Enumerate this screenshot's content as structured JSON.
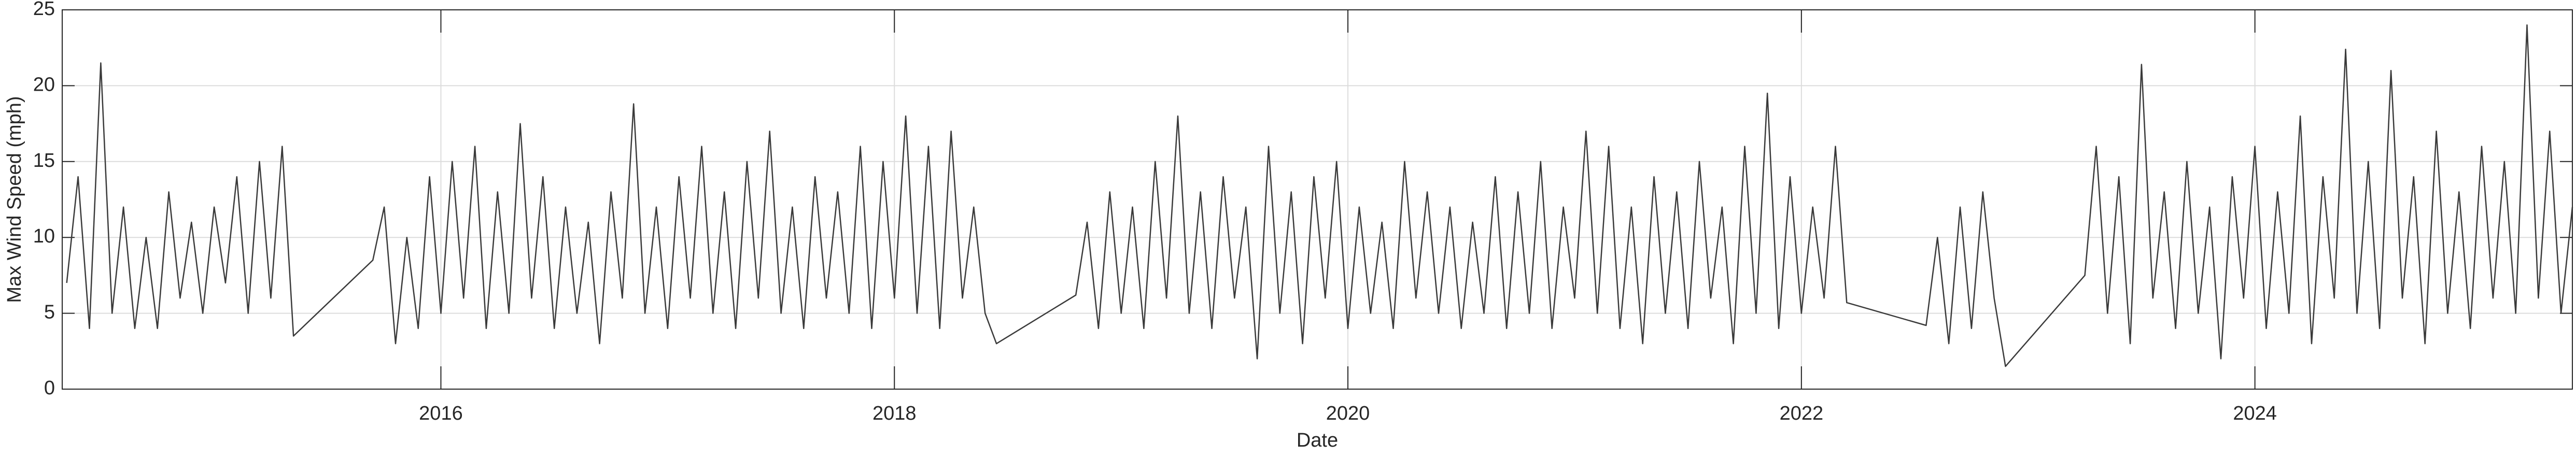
{
  "chart_data": {
    "type": "line",
    "xlabel": "Date",
    "ylabel": "Max Wind Speed (mph)",
    "xlim": [
      2014.33,
      2025.4
    ],
    "xticks": [
      2016,
      2018,
      2020,
      2022,
      2024
    ],
    "ylim": [
      0,
      25
    ],
    "yticks": [
      0,
      5,
      10,
      15,
      20,
      25
    ],
    "grid": true,
    "color": "#3a3a3a",
    "x": [
      2014.35,
      2014.4,
      2014.45,
      2014.5,
      2014.55,
      2014.6,
      2014.65,
      2014.7,
      2014.75,
      2014.8,
      2014.85,
      2014.9,
      2014.95,
      2015,
      2015.05,
      2015.1,
      2015.15,
      2015.2,
      2015.25,
      2015.3,
      2015.35,
      2015.7,
      2015.75,
      2015.8,
      2015.85,
      2015.9,
      2015.95,
      2016,
      2016.05,
      2016.1,
      2016.15,
      2016.2,
      2016.25,
      2016.3,
      2016.35,
      2016.4,
      2016.45,
      2016.5,
      2016.55,
      2016.6,
      2016.65,
      2016.7,
      2016.75,
      2016.8,
      2016.85,
      2016.9,
      2016.95,
      2017,
      2017.05,
      2017.1,
      2017.15,
      2017.2,
      2017.25,
      2017.3,
      2017.35,
      2017.4,
      2017.45,
      2017.5,
      2017.55,
      2017.6,
      2017.65,
      2017.7,
      2017.75,
      2017.8,
      2017.85,
      2017.9,
      2017.95,
      2018,
      2018.05,
      2018.1,
      2018.15,
      2018.2,
      2018.25,
      2018.3,
      2018.35,
      2018.4,
      2018.45,
      2018.8,
      2018.85,
      2018.9,
      2018.95,
      2019,
      2019.05,
      2019.1,
      2019.15,
      2019.2,
      2019.25,
      2019.3,
      2019.35,
      2019.4,
      2019.45,
      2019.5,
      2019.55,
      2019.6,
      2019.65,
      2019.7,
      2019.75,
      2019.8,
      2019.85,
      2019.9,
      2019.95,
      2020,
      2020.05,
      2020.1,
      2020.15,
      2020.2,
      2020.25,
      2020.3,
      2020.35,
      2020.4,
      2020.45,
      2020.5,
      2020.55,
      2020.6,
      2020.65,
      2020.7,
      2020.75,
      2020.8,
      2020.85,
      2020.9,
      2020.95,
      2021,
      2021.05,
      2021.1,
      2021.15,
      2021.2,
      2021.25,
      2021.3,
      2021.35,
      2021.4,
      2021.45,
      2021.5,
      2021.55,
      2021.6,
      2021.65,
      2021.7,
      2021.75,
      2021.8,
      2021.85,
      2021.9,
      2021.95,
      2022,
      2022.05,
      2022.1,
      2022.15,
      2022.2,
      2022.55,
      2022.6,
      2022.65,
      2022.7,
      2022.75,
      2022.8,
      2022.85,
      2022.9,
      2023.25,
      2023.3,
      2023.35,
      2023.4,
      2023.45,
      2023.5,
      2023.55,
      2023.6,
      2023.65,
      2023.7,
      2023.75,
      2023.8,
      2023.85,
      2023.9,
      2023.95,
      2024,
      2024.05,
      2024.1,
      2024.15,
      2024.2,
      2024.25,
      2024.3,
      2024.35,
      2024.4,
      2024.45,
      2024.5,
      2024.55,
      2024.6,
      2024.65,
      2024.7,
      2024.75,
      2024.8,
      2024.85,
      2024.9,
      2024.95,
      2025,
      2025.05,
      2025.1,
      2025.15,
      2025.2,
      2025.25,
      2025.3,
      2025.35,
      2025.4
    ],
    "values": [
      7,
      14,
      4,
      21.5,
      5,
      12,
      4,
      10,
      4,
      13,
      6,
      11,
      5,
      12,
      7,
      14,
      5,
      15,
      6,
      16,
      3.5,
      8.5,
      12,
      3,
      10,
      4,
      14,
      5,
      15,
      6,
      16,
      4,
      13,
      5,
      17.5,
      6,
      14,
      4,
      12,
      5,
      11,
      3,
      13,
      6,
      18.8,
      5,
      12,
      4,
      14,
      6,
      16,
      5,
      13,
      4,
      15,
      6,
      17,
      5,
      12,
      4,
      14,
      6,
      13,
      5,
      16,
      4,
      15,
      6,
      18,
      5,
      16,
      4,
      17,
      6,
      12,
      5,
      3,
      6.2,
      11,
      4,
      13,
      5,
      12,
      4,
      15,
      6,
      18,
      5,
      13,
      4,
      14,
      6,
      12,
      2,
      16,
      5,
      13,
      3,
      14,
      6,
      15,
      4,
      12,
      5,
      11,
      4,
      15,
      6,
      13,
      5,
      12,
      4,
      11,
      5,
      14,
      4,
      13,
      5,
      15,
      4,
      12,
      6,
      17,
      5,
      16,
      4,
      12,
      3,
      14,
      5,
      13,
      4,
      15,
      6,
      12,
      3,
      16,
      5,
      19.5,
      4,
      14,
      5,
      12,
      6,
      16,
      5.7,
      4.2,
      10,
      3,
      12,
      4,
      13,
      6,
      1.5,
      7.5,
      16,
      5,
      14,
      3,
      21.4,
      6,
      13,
      4,
      15,
      5,
      12,
      2,
      14,
      6,
      16,
      4,
      13,
      5,
      18,
      3,
      14,
      6,
      22.4,
      5,
      15,
      4,
      21,
      6,
      14,
      3,
      17,
      5,
      13,
      4,
      16,
      6,
      15,
      5,
      24,
      6,
      17,
      5,
      12
    ]
  }
}
